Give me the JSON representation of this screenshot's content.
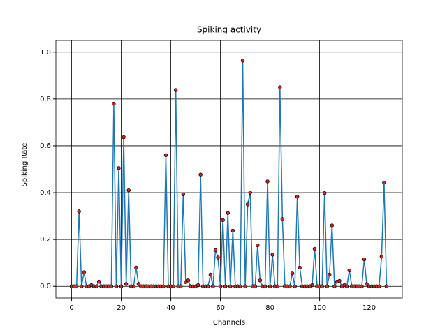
{
  "chart_data": {
    "type": "line",
    "title": "Spiking activity",
    "x_label": "Channels",
    "y_label": "Spiking Rate",
    "x": [
      0,
      1,
      2,
      3,
      4,
      5,
      6,
      7,
      8,
      9,
      10,
      11,
      12,
      13,
      14,
      15,
      16,
      17,
      18,
      19,
      20,
      21,
      22,
      23,
      24,
      25,
      26,
      27,
      28,
      29,
      30,
      31,
      32,
      33,
      34,
      35,
      36,
      37,
      38,
      39,
      40,
      41,
      42,
      43,
      44,
      45,
      46,
      47,
      48,
      49,
      50,
      51,
      52,
      53,
      54,
      55,
      56,
      57,
      58,
      59,
      60,
      61,
      62,
      63,
      64,
      65,
      66,
      67,
      68,
      69,
      70,
      71,
      72,
      73,
      74,
      75,
      76,
      77,
      78,
      79,
      80,
      81,
      82,
      83,
      84,
      85,
      86,
      87,
      88,
      89,
      90,
      91,
      92,
      93,
      94,
      95,
      96,
      97,
      98,
      99,
      100,
      101,
      102,
      103,
      104,
      105,
      106,
      107,
      108,
      109,
      110,
      111,
      112,
      113,
      114,
      115,
      116,
      117,
      118,
      119,
      120,
      121,
      122,
      123,
      124,
      125,
      126,
      127
    ],
    "series": [
      {
        "name": "Spiking Rate",
        "color": "#1f77b4",
        "marker_color": "#d62728",
        "values": [
          0,
          0,
          0,
          0.32,
          0,
          0.06,
          0,
          0,
          0.005,
          0,
          0,
          0.02,
          0,
          0,
          0,
          0,
          0,
          0.78,
          0,
          0.505,
          0,
          0.637,
          0.01,
          0.41,
          0,
          0,
          0.08,
          0.01,
          0,
          0,
          0,
          0,
          0,
          0,
          0,
          0,
          0,
          0,
          0.56,
          0,
          0,
          0,
          0.838,
          0,
          0,
          0.393,
          0.018,
          0.025,
          0,
          0,
          0,
          0.005,
          0.477,
          0,
          0,
          0,
          0.05,
          0,
          0.155,
          0.123,
          0,
          0.283,
          0,
          0.313,
          0,
          0.238,
          0,
          0,
          0,
          0.964,
          0,
          0.35,
          0.4,
          0,
          0,
          0.175,
          0.025,
          0,
          0,
          0.448,
          0,
          0.135,
          0,
          0,
          0.85,
          0.287,
          0,
          0,
          0,
          0.055,
          0,
          0.383,
          0.08,
          0,
          0,
          0,
          0,
          0.005,
          0.16,
          0,
          0,
          0,
          0.398,
          0,
          0.05,
          0.26,
          0,
          0.02,
          0.023,
          0,
          0.005,
          0,
          0.068,
          0,
          0,
          0,
          0,
          0,
          0.115,
          0.01,
          0,
          0,
          0,
          0,
          0,
          0.127,
          0.443,
          0
        ]
      }
    ],
    "xlim": [
      -6.35,
      133.35
    ],
    "ylim": [
      -0.05,
      1.05
    ],
    "xticks": [
      0,
      20,
      40,
      60,
      80,
      100,
      120
    ],
    "yticks": [
      {
        "value": 0,
        "label": "0.0"
      },
      {
        "value": 0.2,
        "label": "0.2"
      },
      {
        "value": 0.4,
        "label": "0.4"
      },
      {
        "value": 0.6,
        "label": "0.6"
      },
      {
        "value": 0.8,
        "label": "0.8"
      },
      {
        "value": 1,
        "label": "1.0"
      }
    ],
    "grid": true
  }
}
